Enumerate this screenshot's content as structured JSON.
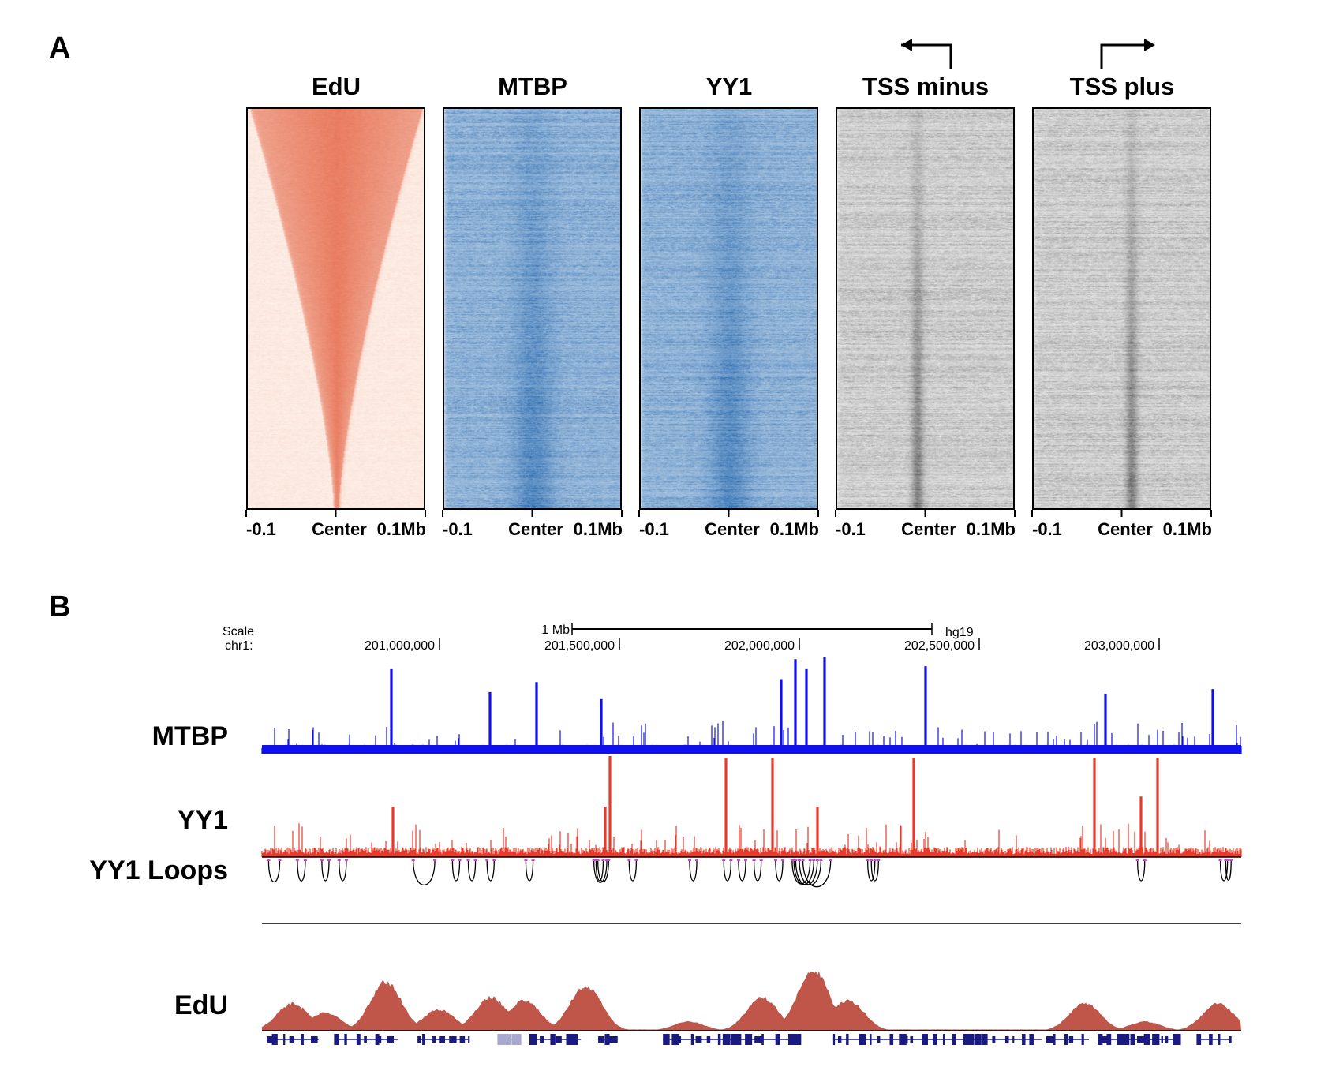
{
  "panel_a": {
    "label": "A",
    "heatmaps": [
      {
        "title": "EdU",
        "color": "#e4603f",
        "bg": "#fdf0e8"
      },
      {
        "title": "MTBP",
        "color": "#2a6bb0",
        "bg": "#e4eef7"
      },
      {
        "title": "YY1",
        "color": "#2a6bb0",
        "bg": "#e4eef7"
      },
      {
        "title": "TSS minus",
        "color": "#333333",
        "bg": "#f7f7f7",
        "arrow": "left"
      },
      {
        "title": "TSS plus",
        "color": "#333333",
        "bg": "#f7f7f7",
        "arrow": "right"
      }
    ],
    "x_ticks": [
      "-0.1",
      "Center",
      "0.1Mb"
    ]
  },
  "panel_b": {
    "label": "B",
    "scale_label": "Scale",
    "scale_bar_label": "1 Mb",
    "assembly": "hg19",
    "chrom_label": "chr1:",
    "coord_ticks": [
      "201,000,000",
      "201,500,000",
      "202,000,000",
      "202,500,000",
      "203,000,000"
    ],
    "coord_tick_values_mb": [
      201.0,
      201.5,
      202.0,
      202.5,
      203.0
    ],
    "tracks": {
      "mtbp": {
        "label": "MTBP",
        "color": "#1010ee"
      },
      "yy1": {
        "label": "YY1",
        "color": "#e83a2a"
      },
      "loops": {
        "label": "YY1 Loops",
        "color": "#000000",
        "anchor_color": "#c050c0"
      },
      "edu": {
        "label": "EdU",
        "color": "#c0554a"
      },
      "genes": {
        "color": "#1a1a80"
      }
    }
  },
  "chart_data": {
    "type": "heatmap",
    "heatmap_x_range_mb": [
      -0.1,
      0.1
    ],
    "genome_region_mb": [
      200.507,
      203.228
    ],
    "mtbp_major_peaks": [
      [
        200.866,
        0.85
      ],
      [
        201.14,
        0.62
      ],
      [
        201.27,
        0.72
      ],
      [
        201.45,
        0.55
      ],
      [
        201.95,
        0.75
      ],
      [
        201.99,
        0.95
      ],
      [
        202.02,
        0.85
      ],
      [
        202.07,
        0.97
      ],
      [
        202.35,
        0.88
      ],
      [
        202.85,
        0.6
      ],
      [
        203.15,
        0.65
      ]
    ],
    "yy1_major_peaks": [
      [
        201.474,
        1.0
      ],
      [
        201.796,
        0.98
      ],
      [
        201.925,
        0.98
      ],
      [
        202.318,
        0.98
      ],
      [
        202.82,
        0.98
      ],
      [
        202.996,
        0.98
      ],
      [
        201.46,
        0.5
      ],
      [
        200.87,
        0.5
      ],
      [
        202.05,
        0.5
      ],
      [
        202.95,
        0.6
      ]
    ],
    "yy1_loops_mb": [
      [
        200.525,
        200.556
      ],
      [
        200.605,
        200.627
      ],
      [
        200.673,
        200.693
      ],
      [
        200.721,
        200.741
      ],
      [
        200.927,
        200.987
      ],
      [
        201.036,
        201.056
      ],
      [
        201.08,
        201.1
      ],
      [
        201.132,
        201.152
      ],
      [
        201.24,
        201.26
      ],
      [
        201.429,
        201.465
      ],
      [
        201.435,
        201.455
      ],
      [
        201.44,
        201.47
      ],
      [
        201.527,
        201.547
      ],
      [
        201.695,
        201.715
      ],
      [
        201.79,
        201.81
      ],
      [
        201.831,
        201.851
      ],
      [
        201.874,
        201.894
      ],
      [
        201.934,
        201.954
      ],
      [
        201.98,
        202.03
      ],
      [
        201.99,
        202.05
      ],
      [
        202.0,
        202.06
      ],
      [
        202.01,
        202.087
      ],
      [
        201.985,
        202.04
      ],
      [
        202.19,
        202.21
      ],
      [
        202.2,
        202.22
      ],
      [
        202.94,
        202.96
      ],
      [
        203.17,
        203.19
      ],
      [
        203.185,
        203.2
      ]
    ],
    "edu_profile_peaks": [
      [
        200.592,
        0.45
      ],
      [
        200.682,
        0.3
      ],
      [
        200.851,
        0.8
      ],
      [
        200.998,
        0.35
      ],
      [
        201.143,
        0.55
      ],
      [
        201.237,
        0.5
      ],
      [
        201.406,
        0.75
      ],
      [
        201.693,
        0.15
      ],
      [
        201.897,
        0.55
      ],
      [
        202.039,
        1.0
      ],
      [
        202.136,
        0.5
      ],
      [
        202.794,
        0.45
      ],
      [
        202.961,
        0.15
      ],
      [
        203.164,
        0.45
      ]
    ],
    "gene_spans_mb": [
      [
        200.52,
        200.664
      ],
      [
        200.707,
        200.884
      ],
      [
        200.939,
        201.082
      ],
      [
        201.161,
        201.202
      ],
      [
        201.25,
        201.31
      ],
      [
        201.322,
        201.393
      ],
      [
        201.441,
        201.489
      ],
      [
        201.621,
        201.991
      ],
      [
        202.094,
        202.673
      ],
      [
        202.686,
        202.805
      ],
      [
        202.829,
        203.056
      ],
      [
        203.104,
        203.2
      ]
    ]
  }
}
